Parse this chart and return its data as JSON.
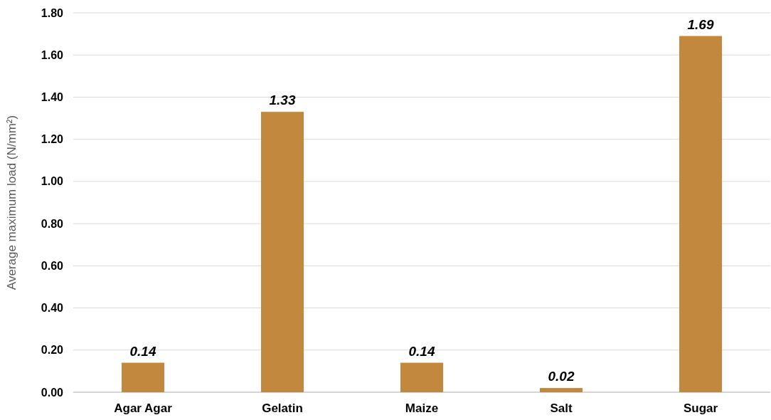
{
  "chart_data": {
    "type": "bar",
    "ylabel": "Average maximum load (N/mm²)",
    "categories": [
      "Agar Agar",
      "Gelatin",
      "Maize",
      "Salt",
      "Sugar"
    ],
    "values": [
      0.14,
      1.33,
      0.14,
      0.02,
      1.69
    ],
    "color": "#c1883e",
    "ylim": [
      0,
      1.8
    ],
    "yticks": [
      {
        "value": 0,
        "label": "0.00"
      },
      {
        "value": 0.2,
        "label": "0.20"
      },
      {
        "value": 0.4,
        "label": "0.40"
      },
      {
        "value": 0.6,
        "label": "0.60"
      },
      {
        "value": 0.8,
        "label": "0.80"
      },
      {
        "value": 1,
        "label": "1.00"
      },
      {
        "value": 1.2,
        "label": "1.20"
      },
      {
        "value": 1.4,
        "label": "1.40"
      },
      {
        "value": 1.6,
        "label": "1.60"
      },
      {
        "value": 1.8,
        "label": "1.80"
      }
    ],
    "grid": "y",
    "data_labels": true
  }
}
